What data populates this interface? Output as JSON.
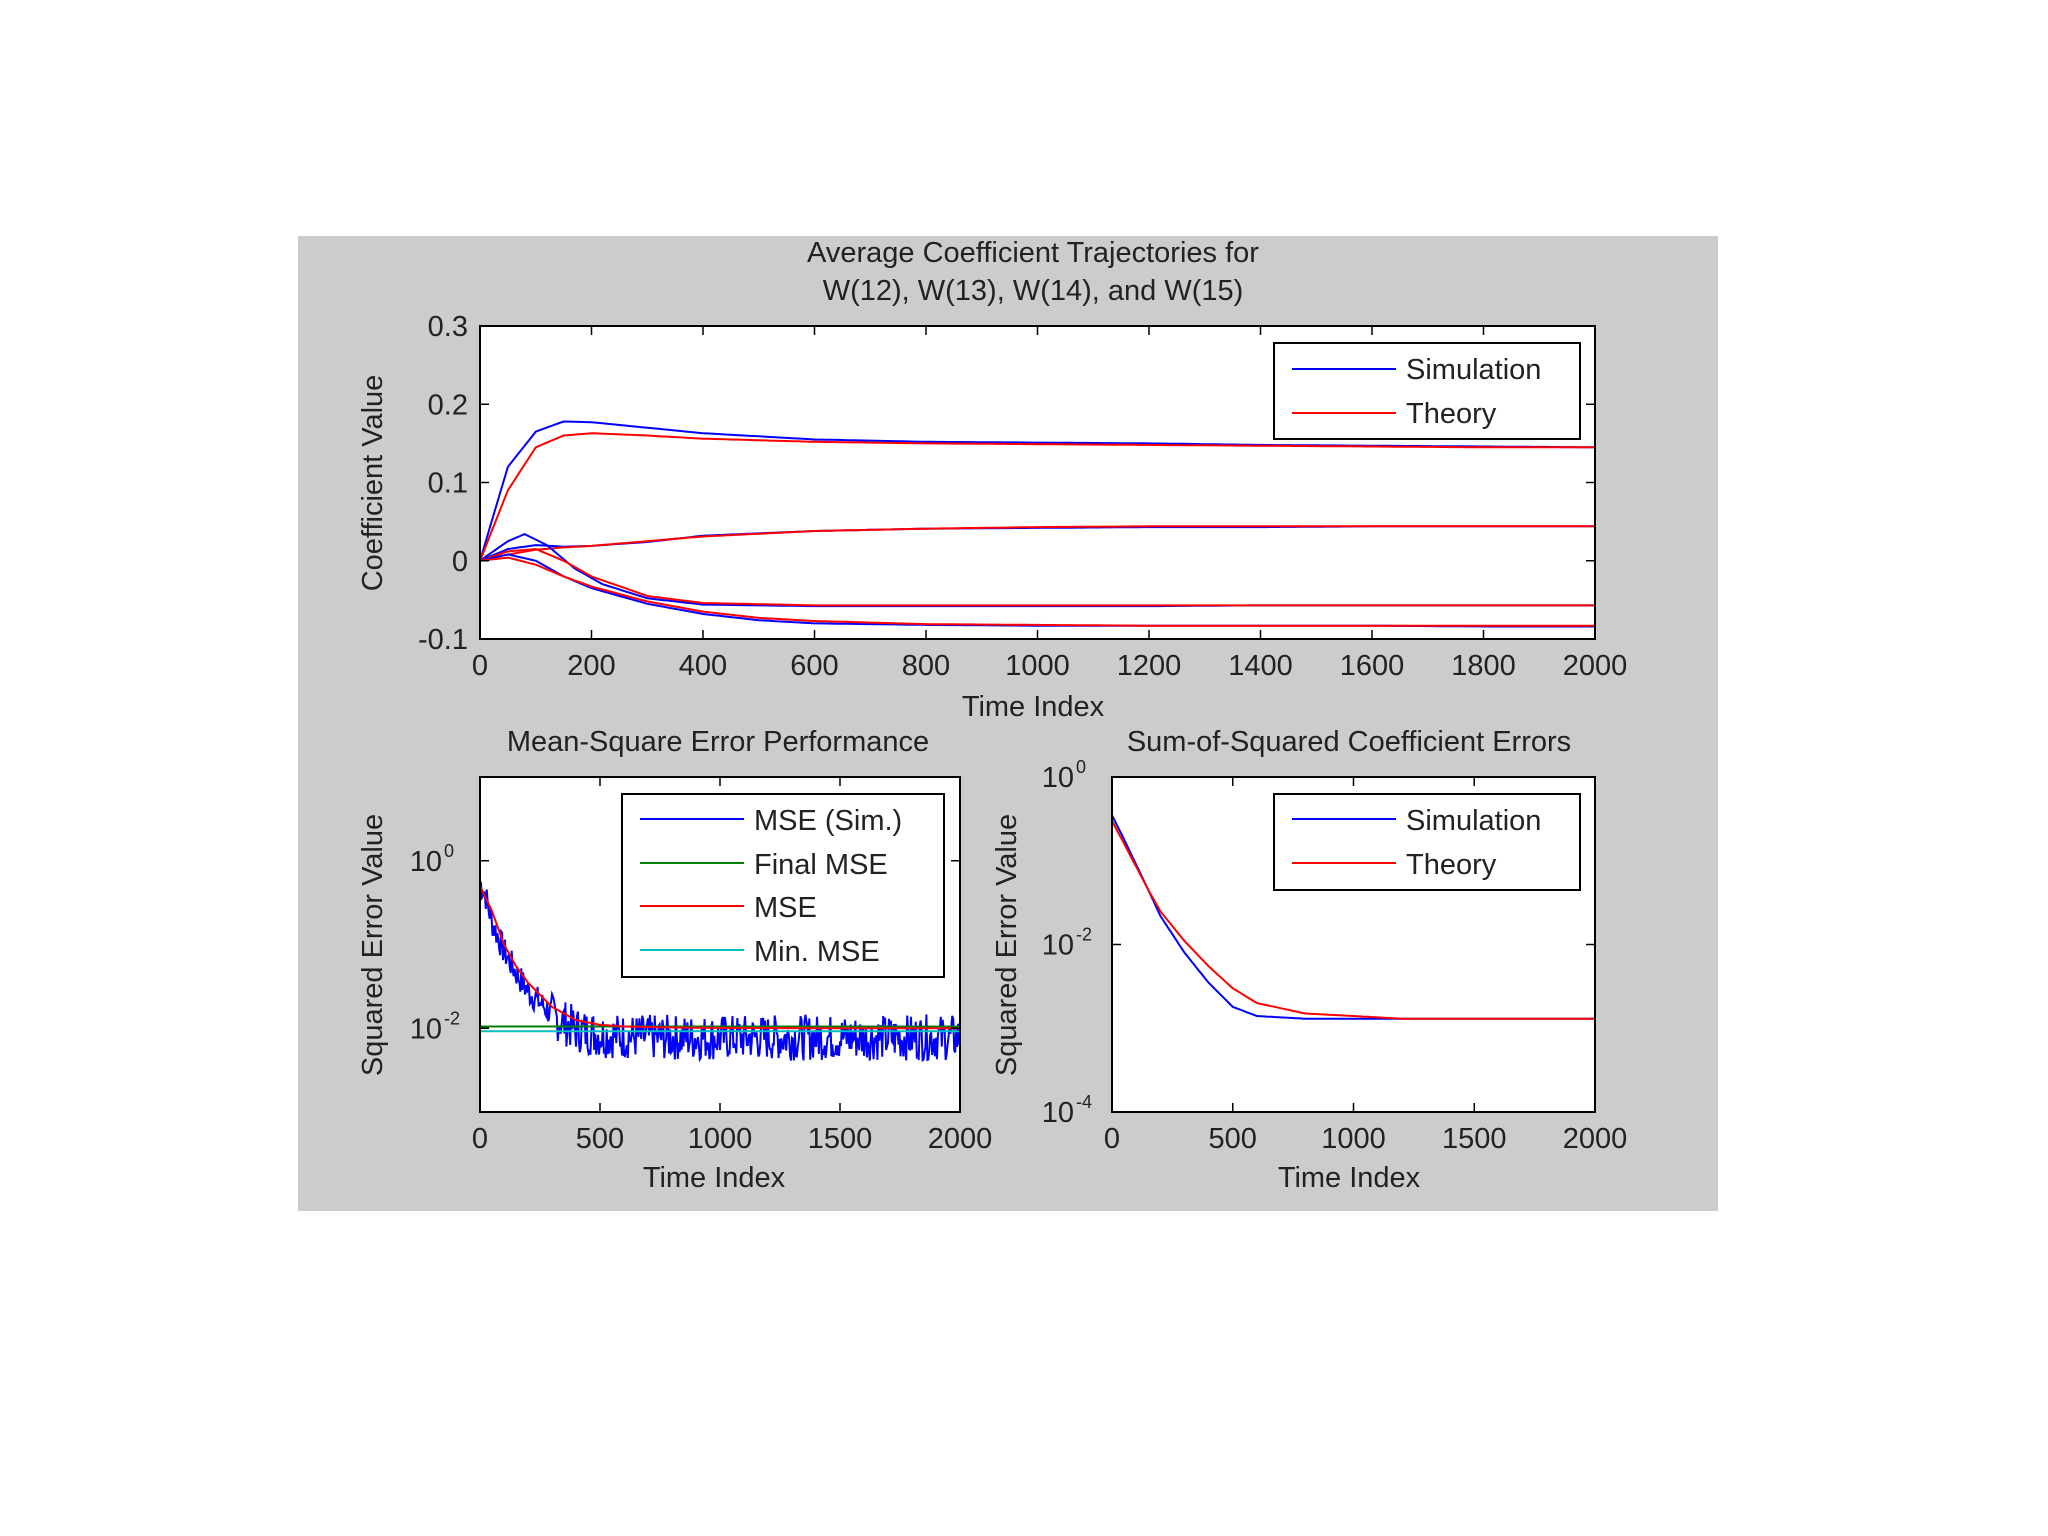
{
  "colors": {
    "figure_bg": "#cccccc",
    "axes_bg": "#ffffff",
    "simulation": "#0000ff",
    "theory": "#ff0000",
    "final_mse": "#008000",
    "min_mse": "#00bfbf"
  },
  "chart_data": [
    {
      "id": "coef",
      "type": "line",
      "title": [
        "Average Coefficient Trajectories for",
        "W(12), W(13), W(14), and W(15)"
      ],
      "xlabel": "Time Index",
      "ylabel": "Coefficient Value",
      "xlim": [
        0,
        2000
      ],
      "ylim": [
        -0.1,
        0.3
      ],
      "xscale": "linear",
      "yscale": "linear",
      "xticks": [
        0,
        200,
        400,
        600,
        800,
        1000,
        1200,
        1400,
        1600,
        1800,
        2000
      ],
      "xtick_labels": [
        "0",
        "200",
        "400",
        "600",
        "800",
        "1000",
        "1200",
        "1400",
        "1600",
        "1800",
        "2000"
      ],
      "yticks": [
        -0.1,
        0,
        0.1,
        0.2,
        0.3
      ],
      "ytick_labels": [
        "-0.1",
        "0",
        "0.1",
        "0.2",
        "0.3"
      ],
      "grid": false,
      "legend": {
        "position": "top-right",
        "entries": [
          "Simulation",
          "Theory"
        ]
      },
      "series": [
        {
          "name": "Simulation",
          "color_key": "simulation",
          "x": [
            0,
            50,
            100,
            150,
            200,
            300,
            400,
            600,
            800,
            1000,
            1200,
            1400,
            1600,
            1800,
            2000
          ],
          "y": [
            0.0,
            0.12,
            0.165,
            0.178,
            0.177,
            0.17,
            0.163,
            0.155,
            0.152,
            0.151,
            0.15,
            0.148,
            0.147,
            0.146,
            0.145
          ]
        },
        {
          "name": "Theory",
          "color_key": "theory",
          "x": [
            0,
            50,
            100,
            150,
            200,
            300,
            400,
            600,
            800,
            1000,
            1200,
            1400,
            1600,
            1800,
            2000
          ],
          "y": [
            0.0,
            0.09,
            0.145,
            0.16,
            0.163,
            0.16,
            0.156,
            0.152,
            0.15,
            0.149,
            0.148,
            0.147,
            0.146,
            0.145,
            0.145
          ]
        },
        {
          "name": "Simulation",
          "color_key": "simulation",
          "x": [
            0,
            50,
            100,
            150,
            200,
            300,
            400,
            600,
            800,
            1000,
            1200,
            1400,
            1600,
            1800,
            2000
          ],
          "y": [
            0.0,
            0.015,
            0.02,
            0.018,
            0.019,
            0.024,
            0.032,
            0.038,
            0.041,
            0.042,
            0.043,
            0.043,
            0.044,
            0.044,
            0.044
          ]
        },
        {
          "name": "Theory",
          "color_key": "theory",
          "x": [
            0,
            50,
            100,
            150,
            200,
            300,
            400,
            600,
            800,
            1000,
            1200,
            1400,
            1600,
            1800,
            2000
          ],
          "y": [
            0.0,
            0.008,
            0.014,
            0.017,
            0.019,
            0.025,
            0.031,
            0.038,
            0.041,
            0.043,
            0.044,
            0.044,
            0.044,
            0.044,
            0.044
          ]
        },
        {
          "name": "Simulation",
          "color_key": "simulation",
          "x": [
            0,
            50,
            80,
            120,
            170,
            220,
            300,
            400,
            600,
            800,
            1000,
            1200,
            1400,
            1600,
            1800,
            2000
          ],
          "y": [
            0.0,
            0.025,
            0.034,
            0.02,
            -0.01,
            -0.03,
            -0.048,
            -0.056,
            -0.058,
            -0.058,
            -0.058,
            -0.058,
            -0.057,
            -0.057,
            -0.057,
            -0.057
          ]
        },
        {
          "name": "Theory",
          "color_key": "theory",
          "x": [
            0,
            50,
            100,
            150,
            200,
            300,
            400,
            600,
            800,
            1000,
            1200,
            1400,
            1600,
            1800,
            2000
          ],
          "y": [
            0.0,
            0.012,
            0.015,
            0.0,
            -0.02,
            -0.045,
            -0.054,
            -0.057,
            -0.057,
            -0.057,
            -0.057,
            -0.057,
            -0.057,
            -0.057,
            -0.057
          ]
        },
        {
          "name": "Simulation",
          "color_key": "simulation",
          "x": [
            0,
            50,
            100,
            150,
            200,
            300,
            400,
            500,
            600,
            800,
            1000,
            1200,
            1400,
            1600,
            1800,
            2000
          ],
          "y": [
            0.0,
            0.008,
            0.0,
            -0.02,
            -0.035,
            -0.055,
            -0.068,
            -0.076,
            -0.08,
            -0.082,
            -0.083,
            -0.083,
            -0.083,
            -0.083,
            -0.084,
            -0.084
          ]
        },
        {
          "name": "Theory",
          "color_key": "theory",
          "x": [
            0,
            50,
            100,
            150,
            200,
            300,
            400,
            500,
            600,
            800,
            1000,
            1200,
            1400,
            1600,
            1800,
            2000
          ],
          "y": [
            0.0,
            0.004,
            -0.005,
            -0.02,
            -0.033,
            -0.052,
            -0.065,
            -0.073,
            -0.077,
            -0.081,
            -0.082,
            -0.083,
            -0.083,
            -0.083,
            -0.083,
            -0.083
          ]
        }
      ]
    },
    {
      "id": "mse",
      "type": "line",
      "title": [
        "Mean-Square Error Performance"
      ],
      "xlabel": "Time Index",
      "ylabel": "Squared Error Value",
      "xlim": [
        0,
        2000
      ],
      "ylim": [
        0.001,
        10
      ],
      "xscale": "linear",
      "yscale": "log",
      "xticks": [
        0,
        500,
        1000,
        1500,
        2000
      ],
      "xtick_labels": [
        "0",
        "500",
        "1000",
        "1500",
        "2000"
      ],
      "ytick_exponents": [
        0,
        -2
      ],
      "grid": false,
      "legend": {
        "position": "top-right",
        "entries": [
          "MSE (Sim.)",
          "Final MSE",
          "MSE",
          "Min. MSE"
        ]
      },
      "series": [
        {
          "name": "MSE (Sim.)",
          "color_key": "simulation",
          "style": "noisy",
          "x": [
            0,
            20,
            50,
            100,
            150,
            200,
            300,
            400,
            500,
            700,
            1000,
            1500,
            2000
          ],
          "y": [
            0.6,
            0.45,
            0.2,
            0.09,
            0.05,
            0.03,
            0.016,
            0.011,
            0.0095,
            0.0088,
            0.0088,
            0.0088,
            0.0088
          ]
        },
        {
          "name": "Final MSE",
          "color_key": "final_mse",
          "x": [
            0,
            2000
          ],
          "y": [
            0.0105,
            0.0105
          ]
        },
        {
          "name": "MSE",
          "color_key": "theory",
          "x": [
            0,
            50,
            100,
            150,
            200,
            300,
            400,
            500,
            600,
            800,
            1000,
            1500,
            2000
          ],
          "y": [
            0.5,
            0.25,
            0.1,
            0.055,
            0.035,
            0.018,
            0.0125,
            0.011,
            0.0105,
            0.0102,
            0.0101,
            0.01,
            0.01
          ]
        },
        {
          "name": "Min. MSE",
          "color_key": "min_mse",
          "x": [
            0,
            2000
          ],
          "y": [
            0.0092,
            0.0092
          ]
        }
      ]
    },
    {
      "id": "sse",
      "type": "line",
      "title": [
        "Sum-of-Squared Coefficient Errors"
      ],
      "xlabel": "Time Index",
      "ylabel": "Squared Error Value",
      "xlim": [
        0,
        2000
      ],
      "ylim": [
        0.0001,
        1
      ],
      "xscale": "linear",
      "yscale": "log",
      "xticks": [
        0,
        500,
        1000,
        1500,
        2000
      ],
      "xtick_labels": [
        "0",
        "500",
        "1000",
        "1500",
        "2000"
      ],
      "ytick_exponents": [
        0,
        -2,
        -4
      ],
      "grid": false,
      "legend": {
        "position": "top-right",
        "entries": [
          "Simulation",
          "Theory"
        ]
      },
      "series": [
        {
          "name": "Simulation",
          "color_key": "simulation",
          "x": [
            0,
            50,
            100,
            150,
            200,
            300,
            400,
            500,
            600,
            800,
            1000,
            1200,
            1400,
            1600,
            1800,
            2000
          ],
          "y": [
            0.35,
            0.18,
            0.09,
            0.045,
            0.022,
            0.008,
            0.0035,
            0.0018,
            0.0014,
            0.0013,
            0.0013,
            0.0013,
            0.0013,
            0.0013,
            0.0013,
            0.0013
          ]
        },
        {
          "name": "Theory",
          "color_key": "theory",
          "x": [
            0,
            50,
            100,
            150,
            200,
            300,
            400,
            500,
            600,
            800,
            1000,
            1200,
            1400,
            1600,
            1800,
            2000
          ],
          "y": [
            0.3,
            0.16,
            0.085,
            0.045,
            0.025,
            0.011,
            0.0055,
            0.003,
            0.002,
            0.0015,
            0.0014,
            0.0013,
            0.0013,
            0.0013,
            0.0013,
            0.0013
          ]
        }
      ]
    }
  ]
}
